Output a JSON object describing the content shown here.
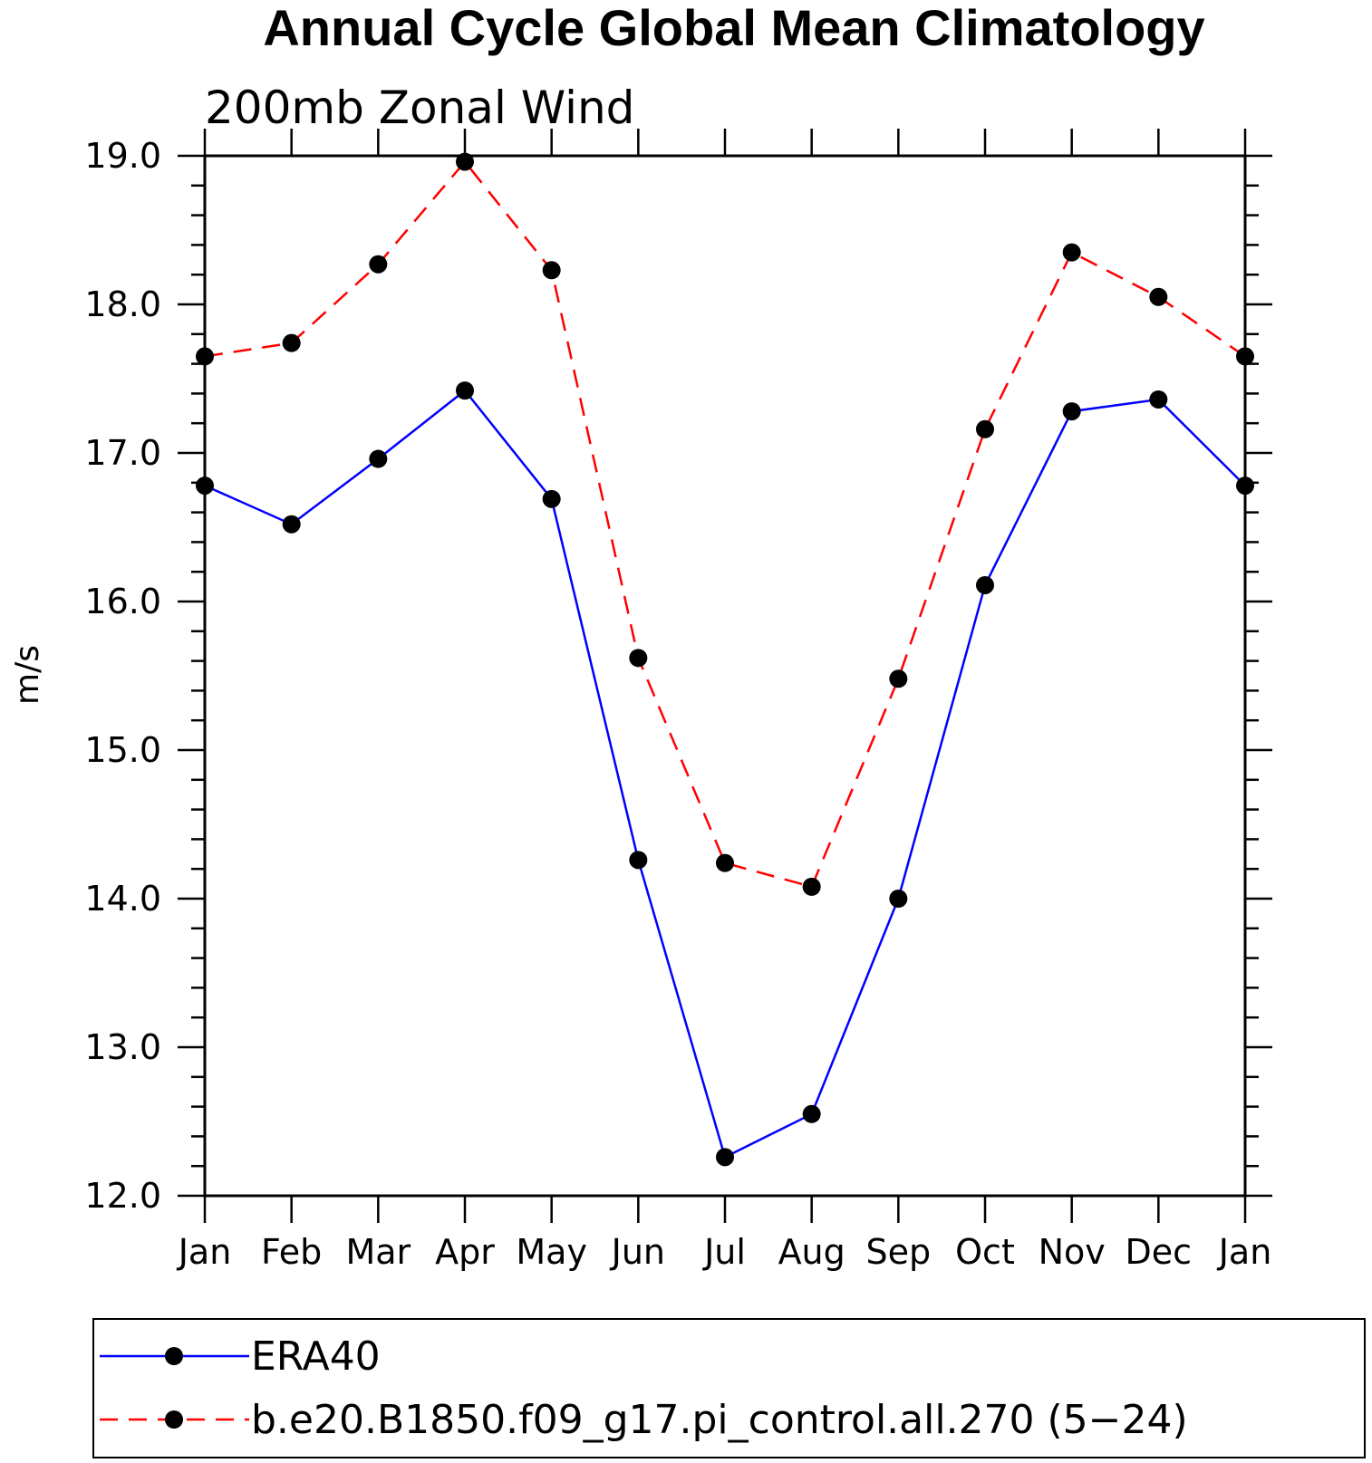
{
  "chart_data": {
    "type": "line",
    "title": "Annual Cycle Global Mean Climatology",
    "subtitle": "200mb Zonal Wind",
    "xlabel": "",
    "ylabel": "m/s",
    "categories": [
      "Jan",
      "Feb",
      "Mar",
      "Apr",
      "May",
      "Jun",
      "Jul",
      "Aug",
      "Sep",
      "Oct",
      "Nov",
      "Dec",
      "Jan"
    ],
    "ylim": [
      12.0,
      19.0
    ],
    "yticks": [
      "12.0",
      "13.0",
      "14.0",
      "15.0",
      "16.0",
      "17.0",
      "18.0",
      "19.0"
    ],
    "grid": false,
    "legend_position": "bottom",
    "series": [
      {
        "name": "ERA40",
        "color": "#0000ff",
        "line_style": "solid",
        "marker": "filled-circle",
        "values": [
          16.78,
          16.52,
          16.96,
          17.42,
          16.69,
          14.26,
          12.26,
          12.55,
          14.0,
          16.11,
          17.28,
          17.36,
          16.78
        ]
      },
      {
        "name": "b.e20.B1850.f09_g17.pi_control.all.270 (5−24)",
        "color": "#ff0000",
        "line_style": "dashed",
        "marker": "filled-circle",
        "values": [
          17.65,
          17.74,
          18.27,
          18.96,
          18.23,
          15.62,
          14.24,
          14.08,
          15.48,
          17.16,
          18.35,
          18.05,
          17.65
        ]
      }
    ]
  }
}
